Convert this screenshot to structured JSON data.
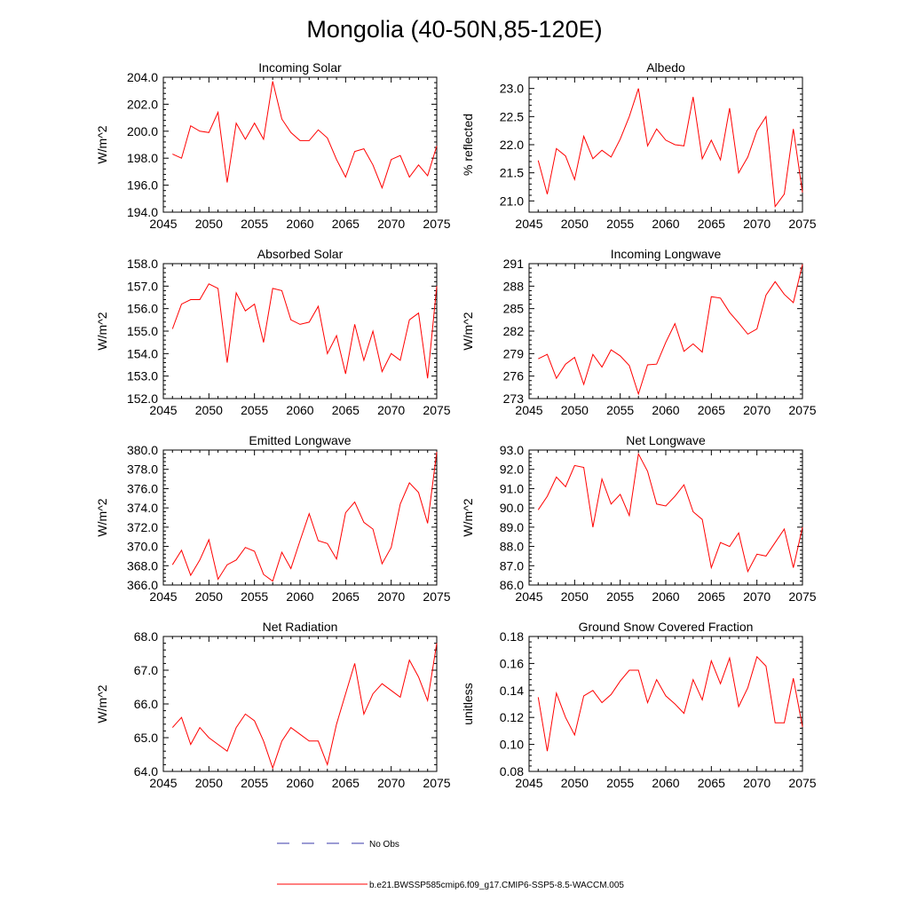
{
  "title": "Mongolia (40-50N,85-120E)",
  "colors": {
    "model": "#ff0000",
    "obs": "#3a3aa8",
    "axis": "#000000"
  },
  "legend": {
    "placement": "bottom-center",
    "obs_label": "No Obs",
    "model_label": "b.e21.BWSSP585cmip6.f09_g17.CMIP6-SSP5-8.5-WACCM.005"
  },
  "chart_data": [
    {
      "type": "line",
      "title": "Incoming Solar",
      "ylabel": "W/m^2",
      "xlim": [
        2045,
        2075
      ],
      "ylim": [
        194,
        204
      ],
      "xticks": [
        2045,
        2050,
        2055,
        2060,
        2065,
        2070,
        2075
      ],
      "yticks": [
        "194.0",
        "196.0",
        "198.0",
        "200.0",
        "202.0",
        "204.0"
      ],
      "ytick_values": [
        194,
        196,
        198,
        200,
        202,
        204
      ],
      "series": [
        {
          "x_start": 2046,
          "values": [
            198.3,
            198.0,
            200.4,
            200.0,
            199.9,
            201.4,
            196.2,
            200.6,
            199.4,
            200.6,
            199.4,
            203.7,
            200.9,
            199.9,
            199.3,
            199.3,
            200.1,
            199.5,
            197.9,
            196.6,
            198.5,
            198.7,
            197.5,
            195.8,
            197.9,
            198.2,
            196.6,
            197.5,
            196.7,
            198.9
          ]
        }
      ]
    },
    {
      "type": "line",
      "title": "Albedo",
      "ylabel": "% reflected",
      "xlim": [
        2045,
        2075
      ],
      "ylim": [
        20.8,
        23.2
      ],
      "xticks": [
        2045,
        2050,
        2055,
        2060,
        2065,
        2070,
        2075
      ],
      "yticks": [
        "21.0",
        "21.5",
        "22.0",
        "22.5",
        "23.0"
      ],
      "ytick_values": [
        21.0,
        21.5,
        22.0,
        22.5,
        23.0
      ],
      "series": [
        {
          "x_start": 2046,
          "values": [
            21.72,
            21.12,
            21.93,
            21.8,
            21.38,
            22.15,
            21.75,
            21.9,
            21.78,
            22.1,
            22.5,
            23.0,
            21.98,
            22.28,
            22.08,
            22.0,
            21.98,
            22.85,
            21.75,
            22.08,
            21.73,
            22.65,
            21.5,
            21.78,
            22.25,
            22.5,
            20.9,
            21.12,
            22.28,
            21.15
          ]
        }
      ]
    },
    {
      "type": "line",
      "title": "Absorbed Solar",
      "ylabel": "W/m^2",
      "xlim": [
        2045,
        2075
      ],
      "ylim": [
        152,
        158
      ],
      "xticks": [
        2045,
        2050,
        2055,
        2060,
        2065,
        2070,
        2075
      ],
      "yticks": [
        "152.0",
        "153.0",
        "154.0",
        "155.0",
        "156.0",
        "157.0",
        "158.0"
      ],
      "ytick_values": [
        152,
        153,
        154,
        155,
        156,
        157,
        158
      ],
      "series": [
        {
          "x_start": 2046,
          "values": [
            155.1,
            156.2,
            156.4,
            156.4,
            157.1,
            156.9,
            153.6,
            156.7,
            155.9,
            156.2,
            154.5,
            156.9,
            156.8,
            155.5,
            155.3,
            155.4,
            156.1,
            154.0,
            154.8,
            153.1,
            155.3,
            153.7,
            155.0,
            153.2,
            154.0,
            153.7,
            155.5,
            155.8,
            152.9,
            157.0
          ]
        }
      ]
    },
    {
      "type": "line",
      "title": "Incoming Longwave",
      "ylabel": "W/m^2",
      "xlim": [
        2045,
        2075
      ],
      "ylim": [
        273,
        291
      ],
      "xticks": [
        2045,
        2050,
        2055,
        2060,
        2065,
        2070,
        2075
      ],
      "yticks": [
        "273",
        "276",
        "279",
        "282",
        "285",
        "288",
        "291"
      ],
      "ytick_values": [
        273,
        276,
        279,
        282,
        285,
        288,
        291
      ],
      "series": [
        {
          "x_start": 2046,
          "values": [
            278.3,
            278.9,
            275.7,
            277.6,
            278.5,
            274.9,
            278.9,
            277.2,
            279.5,
            278.7,
            277.4,
            273.6,
            277.5,
            277.6,
            280.5,
            283.0,
            279.3,
            280.3,
            279.2,
            286.6,
            286.4,
            284.5,
            283.1,
            281.6,
            282.3,
            286.8,
            288.6,
            286.9,
            285.8,
            290.9
          ]
        }
      ]
    },
    {
      "type": "line",
      "title": "Emitted Longwave",
      "ylabel": "W/m^2",
      "xlim": [
        2045,
        2075
      ],
      "ylim": [
        366,
        380
      ],
      "xticks": [
        2045,
        2050,
        2055,
        2060,
        2065,
        2070,
        2075
      ],
      "yticks": [
        "366.0",
        "368.0",
        "370.0",
        "372.0",
        "374.0",
        "376.0",
        "378.0",
        "380.0"
      ],
      "ytick_values": [
        366,
        368,
        370,
        372,
        374,
        376,
        378,
        380
      ],
      "series": [
        {
          "x_start": 2046,
          "values": [
            368.1,
            369.6,
            367.0,
            368.6,
            370.7,
            366.6,
            368.1,
            368.6,
            369.9,
            369.5,
            367.1,
            366.4,
            369.4,
            367.7,
            370.6,
            373.4,
            370.6,
            370.3,
            368.7,
            373.5,
            374.6,
            372.5,
            371.8,
            368.2,
            369.9,
            374.4,
            376.6,
            375.6,
            372.4,
            379.8
          ]
        }
      ]
    },
    {
      "type": "line",
      "title": "Net Longwave",
      "ylabel": "W/m^2",
      "xlim": [
        2045,
        2075
      ],
      "ylim": [
        86,
        93
      ],
      "xticks": [
        2045,
        2050,
        2055,
        2060,
        2065,
        2070,
        2075
      ],
      "yticks": [
        "86.0",
        "87.0",
        "88.0",
        "89.0",
        "90.0",
        "91.0",
        "92.0",
        "93.0"
      ],
      "ytick_values": [
        86,
        87,
        88,
        89,
        90,
        91,
        92,
        93
      ],
      "series": [
        {
          "x_start": 2046,
          "values": [
            89.9,
            90.6,
            91.6,
            91.1,
            92.2,
            92.1,
            89.0,
            91.5,
            90.2,
            90.7,
            89.6,
            92.8,
            91.9,
            90.2,
            90.1,
            90.6,
            91.2,
            89.8,
            89.4,
            86.9,
            88.2,
            88.0,
            88.7,
            86.7,
            87.6,
            87.5,
            88.2,
            88.9,
            86.9,
            89.0
          ]
        }
      ]
    },
    {
      "type": "line",
      "title": "Net Radiation",
      "ylabel": "W/m^2",
      "xlim": [
        2045,
        2075
      ],
      "ylim": [
        64,
        68
      ],
      "xticks": [
        2045,
        2050,
        2055,
        2060,
        2065,
        2070,
        2075
      ],
      "yticks": [
        "64.0",
        "65.0",
        "66.0",
        "67.0",
        "68.0"
      ],
      "ytick_values": [
        64,
        65,
        66,
        67,
        68
      ],
      "series": [
        {
          "x_start": 2046,
          "values": [
            65.3,
            65.6,
            64.8,
            65.3,
            65.0,
            64.8,
            64.6,
            65.3,
            65.7,
            65.5,
            64.9,
            64.1,
            64.9,
            65.3,
            65.1,
            64.9,
            64.9,
            64.2,
            65.4,
            66.3,
            67.2,
            65.7,
            66.3,
            66.6,
            66.4,
            66.2,
            67.3,
            66.8,
            66.1,
            67.8
          ]
        }
      ]
    },
    {
      "type": "line",
      "title": "Ground Snow Covered Fraction",
      "ylabel": "unitless",
      "xlim": [
        2045,
        2075
      ],
      "ylim": [
        0.08,
        0.18
      ],
      "xticks": [
        2045,
        2050,
        2055,
        2060,
        2065,
        2070,
        2075
      ],
      "yticks": [
        "0.08",
        "0.10",
        "0.12",
        "0.14",
        "0.16",
        "0.18"
      ],
      "ytick_values": [
        0.08,
        0.1,
        0.12,
        0.14,
        0.16,
        0.18
      ],
      "series": [
        {
          "x_start": 2046,
          "values": [
            0.135,
            0.095,
            0.138,
            0.12,
            0.107,
            0.136,
            0.14,
            0.131,
            0.137,
            0.147,
            0.155,
            0.155,
            0.131,
            0.148,
            0.136,
            0.13,
            0.123,
            0.148,
            0.133,
            0.162,
            0.145,
            0.164,
            0.128,
            0.142,
            0.165,
            0.158,
            0.116,
            0.116,
            0.149,
            0.113
          ]
        }
      ]
    }
  ]
}
